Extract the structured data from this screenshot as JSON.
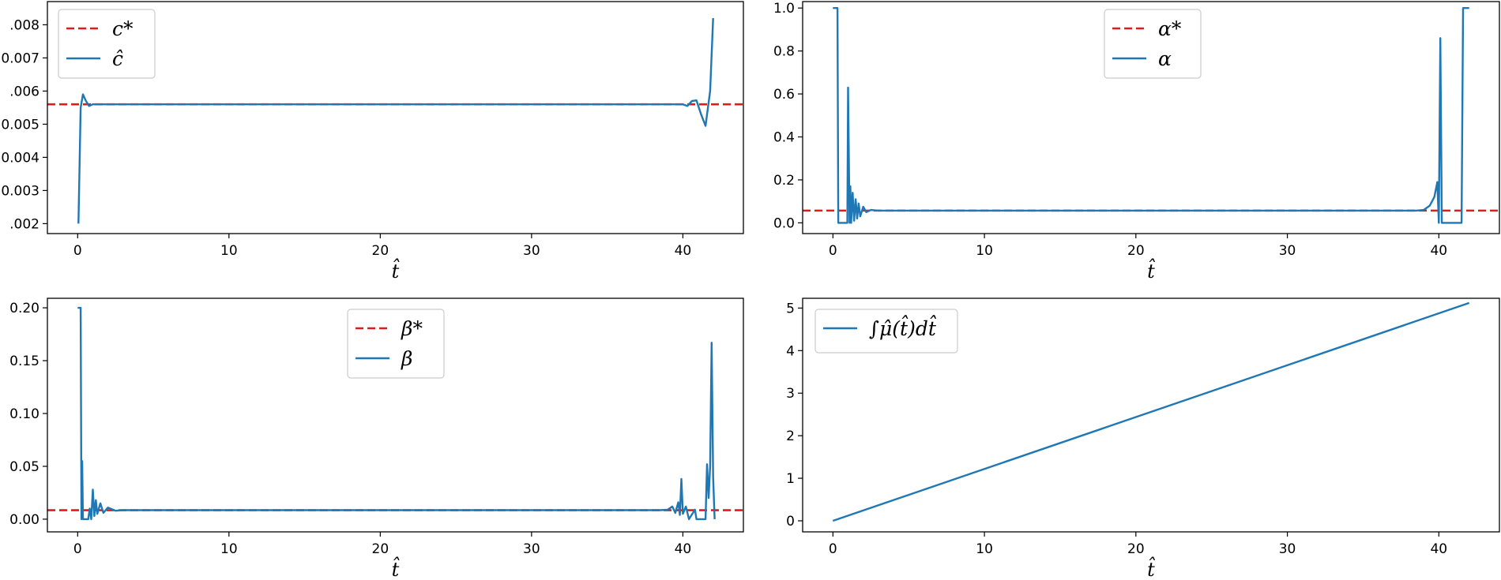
{
  "chart_data": [
    {
      "type": "line",
      "xlabel": "t̂",
      "xlim": [
        -2,
        44
      ],
      "ylim": [
        0.0017,
        0.0087
      ],
      "xticks": [
        0,
        10,
        20,
        30,
        40
      ],
      "xtick_labels": [
        "0",
        "10",
        "20",
        "30",
        "40"
      ],
      "yticks": [
        0.002,
        0.003,
        0.004,
        0.005,
        0.006,
        0.007,
        0.008
      ],
      "ytick_labels": [
        ".002",
        "0.003",
        "0.004",
        "0.005",
        ".006",
        "0.007",
        ".008"
      ],
      "legend": "top-left",
      "grid": false,
      "reference": {
        "name": "c*",
        "y": 0.0056,
        "style": "dashed",
        "color": "#e31a1c"
      },
      "series": [
        {
          "name": "ĉ",
          "color": "#1f77b4",
          "x": [
            0.05,
            0.2,
            0.35,
            0.55,
            0.75,
            1.0,
            1.2,
            1.5,
            40.0,
            40.3,
            40.6,
            40.9,
            41.2,
            41.5,
            41.8,
            42.0
          ],
          "y": [
            0.002,
            0.0055,
            0.0059,
            0.0057,
            0.00555,
            0.0056,
            0.0056,
            0.0056,
            0.0056,
            0.00555,
            0.0057,
            0.00572,
            0.0053,
            0.00495,
            0.006,
            0.0082
          ]
        }
      ]
    },
    {
      "type": "line",
      "xlabel": "t̂",
      "xlim": [
        -2,
        44
      ],
      "ylim": [
        -0.05,
        1.03
      ],
      "xticks": [
        0,
        10,
        20,
        30,
        40
      ],
      "xtick_labels": [
        "0",
        "10",
        "20",
        "30",
        "40"
      ],
      "yticks": [
        0.0,
        0.2,
        0.4,
        0.6,
        0.8,
        1.0
      ],
      "ytick_labels": [
        "0.0",
        "0.2",
        "0.4",
        "0.6",
        "0.8",
        "1.0"
      ],
      "legend": "top-center",
      "grid": false,
      "reference": {
        "name": "α*",
        "y": 0.057,
        "style": "dashed",
        "color": "#e31a1c"
      },
      "series": [
        {
          "name": "α",
          "color": "#1f77b4",
          "x": [
            0.0,
            0.3,
            0.35,
            0.4,
            0.95,
            1.0,
            1.1,
            1.15,
            1.2,
            1.3,
            1.4,
            1.5,
            1.6,
            1.7,
            1.8,
            2.0,
            2.2,
            2.5,
            3.0,
            38.5,
            39.0,
            39.4,
            39.7,
            39.9,
            40.0,
            40.1,
            40.2,
            40.3,
            40.5,
            41.0,
            41.4,
            41.5,
            41.6,
            42.0
          ],
          "y": [
            1.0,
            1.0,
            0.0,
            0.0,
            0.0,
            0.63,
            0.0,
            0.17,
            0.0,
            0.14,
            0.01,
            0.11,
            0.02,
            0.09,
            0.03,
            0.075,
            0.05,
            0.06,
            0.057,
            0.057,
            0.06,
            0.08,
            0.12,
            0.19,
            0.0,
            0.86,
            0.0,
            0.0,
            0.0,
            0.0,
            0.0,
            0.0,
            1.0,
            1.0
          ]
        }
      ]
    },
    {
      "type": "line",
      "xlabel": "t̂",
      "xlim": [
        -2,
        44
      ],
      "ylim": [
        -0.012,
        0.209
      ],
      "xticks": [
        0,
        10,
        20,
        30,
        40
      ],
      "xtick_labels": [
        "0",
        "10",
        "20",
        "30",
        "40"
      ],
      "yticks": [
        0.0,
        0.05,
        0.1,
        0.15,
        0.2
      ],
      "ytick_labels": [
        "0.00",
        "0.05",
        "0.10",
        "0.15",
        "0.20"
      ],
      "legend": "top-center",
      "grid": false,
      "reference": {
        "name": "β*",
        "y": 0.0085,
        "style": "dashed",
        "color": "#e31a1c"
      },
      "series": [
        {
          "name": "β",
          "color": "#1f77b4",
          "x": [
            0.0,
            0.2,
            0.25,
            0.3,
            0.35,
            0.4,
            0.7,
            0.8,
            0.9,
            1.0,
            1.1,
            1.2,
            1.3,
            1.5,
            1.7,
            2.0,
            2.5,
            3.0,
            38.5,
            39.0,
            39.3,
            39.5,
            39.7,
            39.8,
            39.9,
            40.0,
            40.2,
            40.4,
            40.8,
            40.9,
            41.5,
            41.6,
            41.7,
            41.8,
            41.9,
            42.0,
            42.1
          ],
          "y": [
            0.2,
            0.2,
            0.0,
            0.055,
            0.0,
            0.0,
            0.0,
            0.01,
            0.0,
            0.028,
            0.003,
            0.018,
            0.005,
            0.015,
            0.006,
            0.011,
            0.008,
            0.0085,
            0.0085,
            0.009,
            0.012,
            0.006,
            0.016,
            0.004,
            0.038,
            0.005,
            0.012,
            0.0,
            0.009,
            0.0,
            0.0,
            0.052,
            0.02,
            0.05,
            0.167,
            0.04,
            0.0
          ]
        }
      ]
    },
    {
      "type": "line",
      "xlabel": "t̂",
      "xlim": [
        -2,
        44
      ],
      "ylim": [
        -0.26,
        5.23
      ],
      "xticks": [
        0,
        10,
        20,
        30,
        40
      ],
      "xtick_labels": [
        "0",
        "10",
        "20",
        "30",
        "40"
      ],
      "yticks": [
        0,
        1,
        2,
        3,
        4,
        5
      ],
      "ytick_labels": [
        "0",
        "1",
        "2",
        "3",
        "4",
        "5"
      ],
      "legend": "top-left",
      "grid": false,
      "series": [
        {
          "name": "∫μ̂(t̂)dt̂",
          "color": "#1f77b4",
          "x": [
            0,
            42
          ],
          "y": [
            0,
            5.12
          ]
        }
      ]
    }
  ]
}
